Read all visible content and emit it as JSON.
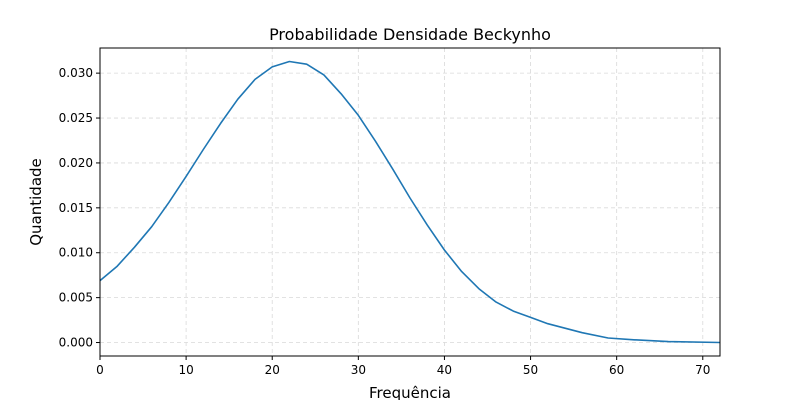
{
  "chart_data": {
    "type": "line",
    "title": "Probabilidade Densidade Beckynho",
    "xlabel": "Frequência",
    "ylabel": "Quantidade",
    "xlim": [
      0,
      72
    ],
    "ylim": [
      -0.0015,
      0.0328
    ],
    "x_ticks": [
      "0",
      "10",
      "20",
      "30",
      "40",
      "50",
      "60",
      "70"
    ],
    "y_ticks": [
      "0.000",
      "0.005",
      "0.010",
      "0.015",
      "0.020",
      "0.025",
      "0.030"
    ],
    "grid": true,
    "series_color": "#1f77b4",
    "series": [
      {
        "x": [
          0,
          2,
          4,
          6,
          8,
          10,
          12,
          14,
          16,
          18,
          20,
          22,
          24,
          26,
          28,
          30,
          32,
          34,
          36,
          38,
          40,
          42,
          44,
          46,
          48,
          50,
          52,
          54,
          56,
          59,
          62,
          66,
          72
        ],
        "y": [
          0.0069,
          0.0085,
          0.0106,
          0.0129,
          0.0156,
          0.0185,
          0.0215,
          0.0244,
          0.0271,
          0.0293,
          0.0307,
          0.0313,
          0.031,
          0.0298,
          0.0277,
          0.0253,
          0.0224,
          0.0193,
          0.0161,
          0.0131,
          0.0103,
          0.0079,
          0.006,
          0.0045,
          0.0035,
          0.0028,
          0.0021,
          0.0016,
          0.0011,
          0.0005,
          0.0003,
          0.0001,
          0.0
        ]
      }
    ]
  }
}
